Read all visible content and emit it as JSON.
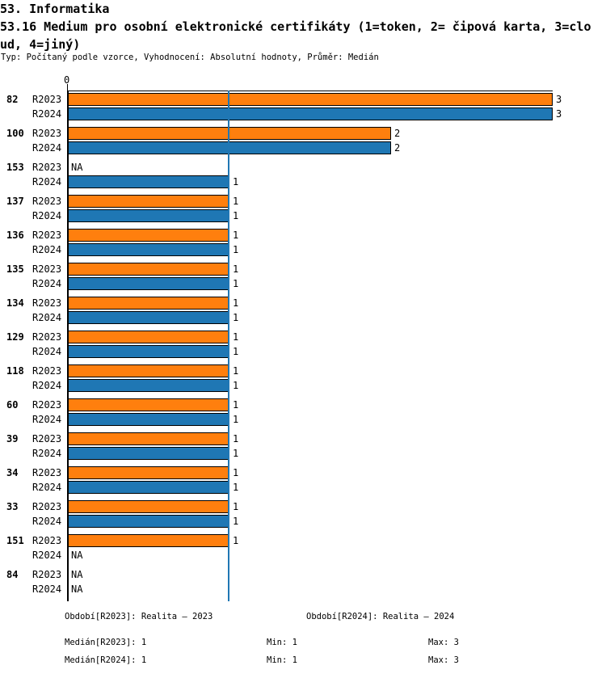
{
  "header": {
    "section_title": "53. Informatika",
    "chart_title_line1": "53.16 Medium pro osobní elektronické certifikáty (1=token, 2= čipová karta, 3=clo",
    "chart_title_line2": "ud, 4=jiný)",
    "meta": "Typ: Počítaný podle vzorce, Vyhodnocení: Absolutní hodnoty, Průměr: Medián"
  },
  "chart_data": {
    "type": "bar",
    "orientation": "horizontal",
    "title": "53.16 Medium pro osobní elektronické certifikáty (1=token, 2= čipová karta, 3=cloud, 4=jiný)",
    "axis_tick_label": "0",
    "xlim": [
      0,
      3
    ],
    "na_text": "NA",
    "median_reference_line_value": 1,
    "grid": false,
    "legend_position": "none",
    "categories": [
      "82",
      "100",
      "153",
      "137",
      "136",
      "135",
      "134",
      "129",
      "118",
      "60",
      "39",
      "34",
      "33",
      "151",
      "84"
    ],
    "series": [
      {
        "name": "R2023",
        "color": "#ff7f0e",
        "values": [
          3,
          2,
          null,
          1,
          1,
          1,
          1,
          1,
          1,
          1,
          1,
          1,
          1,
          1,
          null
        ]
      },
      {
        "name": "R2024",
        "color": "#1f77b4",
        "values": [
          3,
          2,
          1,
          1,
          1,
          1,
          1,
          1,
          1,
          1,
          1,
          1,
          1,
          null,
          null
        ]
      }
    ]
  },
  "footer": {
    "period_r2023": "Období[R2023]: Realita – 2023",
    "period_r2024": "Období[R2024]: Realita – 2024",
    "median_r2023": "Medián[R2023]: 1",
    "min_r2023": "Min: 1",
    "max_r2023": "Max: 3",
    "median_r2024": "Medián[R2024]: 1",
    "min_r2024": "Min: 1",
    "max_r2024": "Max: 3"
  },
  "colors": {
    "bar_r2023": "#ff7f0e",
    "bar_r2024": "#1f77b4",
    "median_line": "#2077b4",
    "axis": "#000000",
    "background": "#ffffff",
    "text": "#000000"
  }
}
